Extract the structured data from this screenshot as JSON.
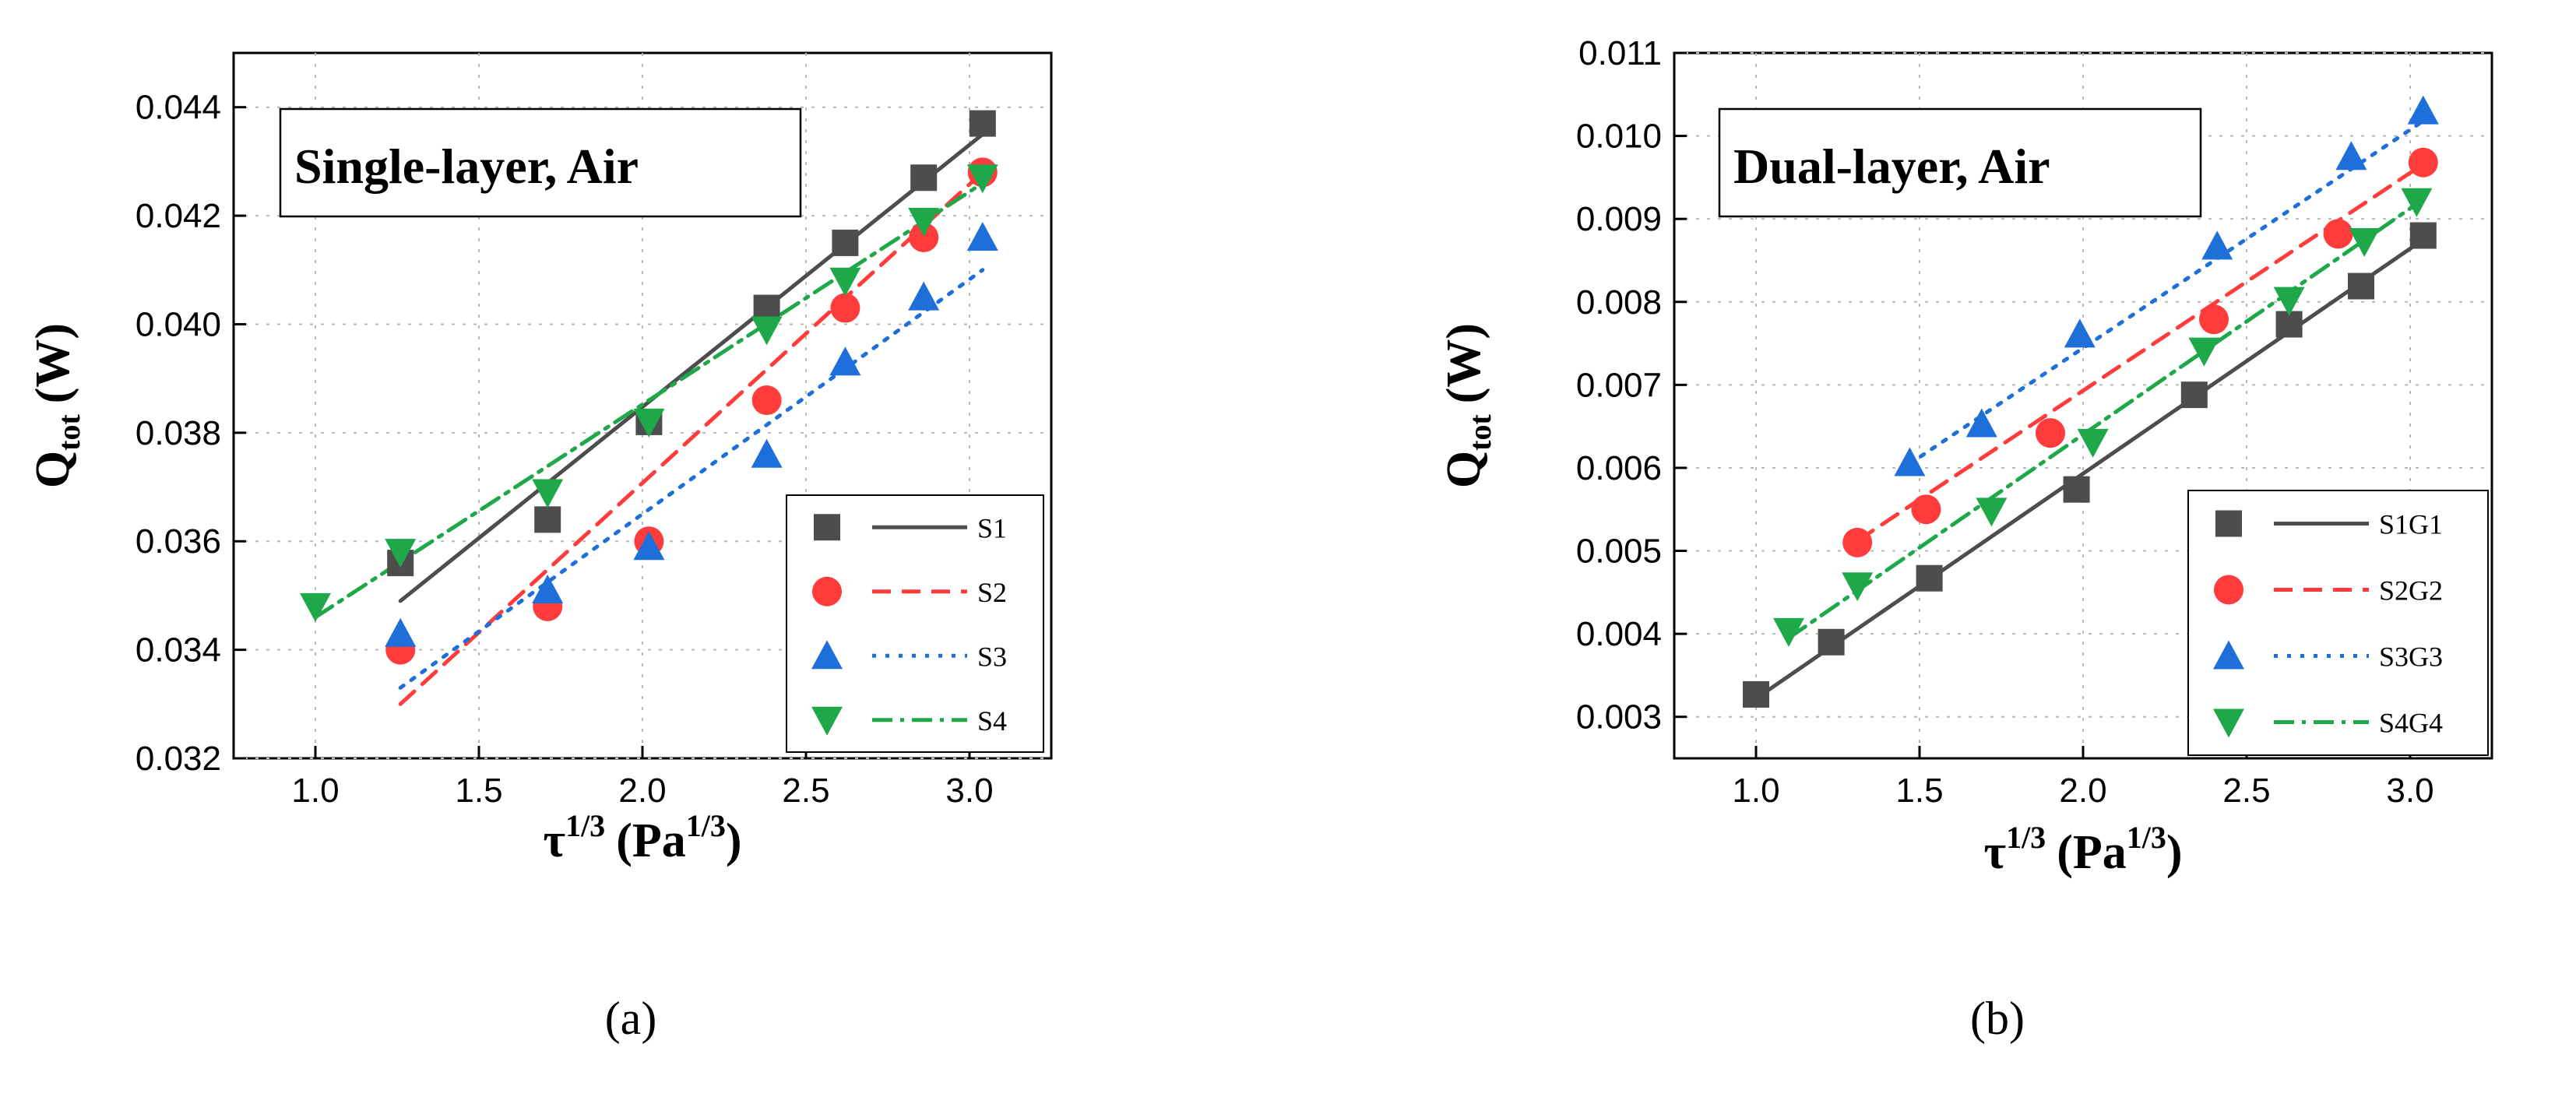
{
  "chart_data": [
    {
      "type": "scatter",
      "id": "a",
      "title": "Single-layer, Air",
      "caption": "(a)",
      "xlabel": "τ^1/3 (Pa^1/3)",
      "xlabel_main": "τ",
      "xlabel_sup": "1/3",
      "xlabel_unit_open": "(Pa",
      "xlabel_unit_sup": "1/3",
      "xlabel_unit_close": ")",
      "ylabel": "Q_tot (W)",
      "ylabel_main": "Q",
      "ylabel_sub": "tot",
      "ylabel_unit": "(W)",
      "xlim": [
        0.75,
        3.25
      ],
      "ylim": [
        0.032,
        0.045
      ],
      "xticks": [
        "1.0",
        "1.5",
        "2.0",
        "2.5",
        "3.0"
      ],
      "xtick_values": [
        1.0,
        1.5,
        2.0,
        2.5,
        3.0
      ],
      "yticks": [
        "0.032",
        "0.034",
        "0.036",
        "0.038",
        "0.040",
        "0.042",
        "0.044"
      ],
      "ytick_values": [
        0.032,
        0.034,
        0.036,
        0.038,
        0.04,
        0.042,
        0.044
      ],
      "grid": true,
      "legend_position": "bottom-right",
      "series": [
        {
          "name": "S1",
          "marker": "square",
          "color": "#4d4d4d",
          "line": "solid",
          "x": [
            1.26,
            1.71,
            2.02,
            2.38,
            2.62,
            2.86,
            3.04
          ],
          "y": [
            0.0356,
            0.0364,
            0.0382,
            0.0403,
            0.0415,
            0.0427,
            0.0437
          ],
          "fit": {
            "x": [
              1.26,
              3.04
            ],
            "y": [
              0.0349,
              0.0435
            ]
          }
        },
        {
          "name": "S2",
          "marker": "circle",
          "color": "#ff3b3b",
          "line": "dashed",
          "x": [
            1.26,
            1.71,
            2.02,
            2.38,
            2.62,
            2.86,
            3.04
          ],
          "y": [
            0.034,
            0.0348,
            0.036,
            0.0386,
            0.0403,
            0.0416,
            0.0428
          ],
          "fit": {
            "x": [
              1.26,
              3.04
            ],
            "y": [
              0.033,
              0.0428
            ]
          }
        },
        {
          "name": "S3",
          "marker": "triangle-up",
          "color": "#1e6fd9",
          "line": "dotted",
          "x": [
            1.26,
            1.71,
            2.02,
            2.38,
            2.62,
            2.86,
            3.04
          ],
          "y": [
            0.0343,
            0.0351,
            0.0359,
            0.0376,
            0.0393,
            0.0405,
            0.0416
          ],
          "fit": {
            "x": [
              1.26,
              3.04
            ],
            "y": [
              0.0333,
              0.041
            ]
          }
        },
        {
          "name": "S4",
          "marker": "triangle-down",
          "color": "#1fa84a",
          "line": "dashdot",
          "x": [
            1.0,
            1.26,
            1.71,
            2.02,
            2.38,
            2.62,
            2.86,
            3.04
          ],
          "y": [
            0.0348,
            0.0358,
            0.0369,
            0.0382,
            0.0399,
            0.0408,
            0.0419,
            0.0427
          ],
          "fit": {
            "x": [
              1.0,
              3.04
            ],
            "y": [
              0.0346,
              0.0426
            ]
          }
        }
      ]
    },
    {
      "type": "scatter",
      "id": "b",
      "title": "Dual-layer, Air",
      "caption": "(b)",
      "xlabel": "τ^1/3 (Pa^1/3)",
      "xlabel_main": "τ",
      "xlabel_sup": "1/3",
      "xlabel_unit_open": "(Pa",
      "xlabel_unit_sup": "1/3",
      "xlabel_unit_close": ")",
      "ylabel": "Q_tot (W)",
      "ylabel_main": "Q",
      "ylabel_sub": "tot",
      "ylabel_unit": "(W)",
      "xlim": [
        0.75,
        3.25
      ],
      "ylim": [
        0.0025,
        0.011
      ],
      "xticks": [
        "1.0",
        "1.5",
        "2.0",
        "2.5",
        "3.0"
      ],
      "xtick_values": [
        1.0,
        1.5,
        2.0,
        2.5,
        3.0
      ],
      "yticks": [
        "0.003",
        "0.004",
        "0.005",
        "0.006",
        "0.007",
        "0.008",
        "0.009",
        "0.010",
        "0.011"
      ],
      "ytick_values": [
        0.003,
        0.004,
        0.005,
        0.006,
        0.007,
        0.008,
        0.009,
        0.01,
        0.011
      ],
      "grid": true,
      "legend_position": "bottom-right",
      "series": [
        {
          "name": "S1G1",
          "marker": "square",
          "color": "#4d4d4d",
          "line": "solid",
          "x": [
            1.0,
            1.23,
            1.53,
            1.98,
            2.34,
            2.63,
            2.85,
            3.04
          ],
          "y": [
            0.00327,
            0.0039,
            0.00467,
            0.00574,
            0.00688,
            0.00773,
            0.00819,
            0.0088
          ],
          "fit": {
            "x": [
              1.0,
              3.04
            ],
            "y": [
              0.00322,
              0.00875
            ]
          }
        },
        {
          "name": "S2G2",
          "marker": "circle",
          "color": "#ff3b3b",
          "line": "dashed",
          "x": [
            1.31,
            1.52,
            1.9,
            2.4,
            2.78,
            3.04
          ],
          "y": [
            0.0051,
            0.0055,
            0.00642,
            0.00779,
            0.00882,
            0.00968
          ],
          "fit": {
            "x": [
              1.31,
              3.04
            ],
            "y": [
              0.00512,
              0.00966
            ]
          }
        },
        {
          "name": "S3G3",
          "marker": "triangle-up",
          "color": "#1e6fd9",
          "line": "dotted",
          "x": [
            1.47,
            1.69,
            1.99,
            2.41,
            2.82,
            3.04
          ],
          "y": [
            0.00606,
            0.00653,
            0.00761,
            0.00867,
            0.00975,
            0.0103
          ],
          "fit": {
            "x": [
              1.47,
              3.04
            ],
            "y": [
              0.00605,
              0.01018
            ]
          }
        },
        {
          "name": "S4G4",
          "marker": "triangle-down",
          "color": "#1fa84a",
          "line": "dashdot",
          "x": [
            1.1,
            1.31,
            1.72,
            2.03,
            2.37,
            2.63,
            2.86,
            3.02
          ],
          "y": [
            0.00403,
            0.00458,
            0.00548,
            0.00631,
            0.00741,
            0.00802,
            0.00873,
            0.00921
          ],
          "fit": {
            "x": [
              1.1,
              3.02
            ],
            "y": [
              0.00395,
              0.00918
            ]
          }
        }
      ]
    }
  ]
}
